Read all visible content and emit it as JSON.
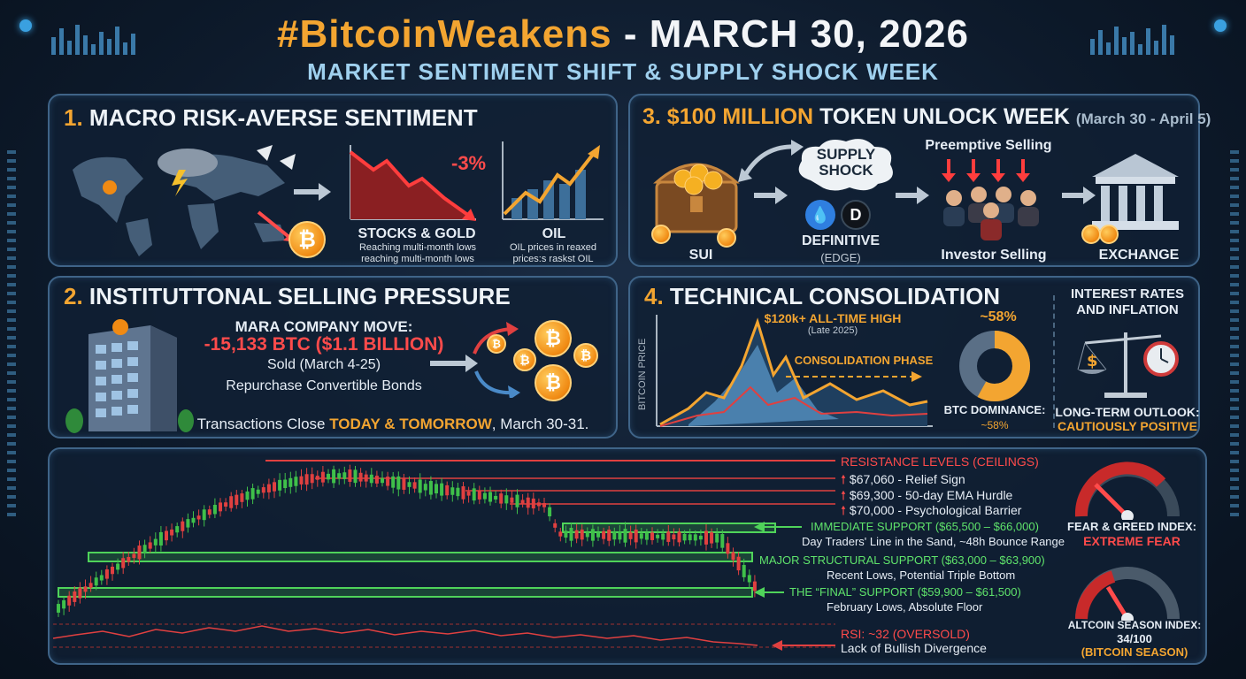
{
  "header": {
    "title_hash": "#BitcoinWeakens",
    "title_rest": " - MARCH 30, 2026",
    "subtitle": "MARKET SENTIMENT SHIFT & SUPPLY SHOCK WEEK"
  },
  "panel1": {
    "num": "1.",
    "title": "MACRO RISK-AVERSE SENTIMENT",
    "stocks_change": "-3%",
    "stocks_label": "STOCKS & GOLD",
    "stocks_caption_1": "Reaching multi-month lows",
    "stocks_caption_2": "reaching multi-month lows",
    "oil_label": "OIL",
    "oil_caption_1": "OIL prices in reaxed",
    "oil_caption_2": "prices:s raskst OIL"
  },
  "panel2": {
    "num": "2.",
    "title": "INSTITUTTONAL SELLING PRESSURE",
    "move_label": "MARA COMPANY MOVE:",
    "amount": "-15,133 BTC ($1.1 BILLION)",
    "sold": "Sold (March 4-25)",
    "repurchase": "Repurchase Convertible Bonds",
    "close_prefix": "Transactions Close ",
    "close_highlight": "TODAY & TOMORROW",
    "close_suffix": ", March 30-31."
  },
  "panel3": {
    "title_highlight": "3. $100 MILLION",
    "title_rest": " TOKEN UNLOCK WEEK",
    "dates": "(March 30 - April 5)",
    "supply_shock_1": "SUPPLY",
    "supply_shock_2": "SHOCK",
    "sui": "SUI",
    "definitive": "DEFINITIVE",
    "edge": "(EDGE)",
    "preemptive": "Preemptive Selling",
    "investor": "Investor Selling",
    "exchange": "EXCHANGE"
  },
  "panel4": {
    "num": "4.",
    "title": "TECHNICAL CONSOLIDATION",
    "ath": "$120k+ ALL-TIME HIGH",
    "ath_date": "(Late 2025)",
    "consolidation": "CONSOLIDATION PHASE",
    "axis": "BITCOIN PRICE",
    "dominance_top": "~58%",
    "dominance_label": "BTC DOMINANCE:",
    "dominance_value": "~58%",
    "dominance_fraction": 0.58,
    "rates_1": "INTEREST RATES",
    "rates_2": "AND INFLATION",
    "outlook_1": "LONG-TERM OUTLOOK:",
    "outlook_2": "CAUTIOUSLY POSITIVE"
  },
  "levels": {
    "resistance_title": "RESISTANCE LEVELS (CEILINGS)",
    "r1": "$67,060 - Relief Sign",
    "r2": "$69,300 - 50-day EMA Hurdle",
    "r3": "$70,000 - Psychological Barrier",
    "s1_title": "IMMEDIATE SUPPORT ($65,500 – $66,000)",
    "s1_desc": "Day Traders' Line in the Sand, ~48h Bounce Range",
    "s2_title": "MAJOR STRUCTURAL SUPPORT ($63,000 – $63,900)",
    "s2_desc": "Recent Lows, Potential Triple Bottom",
    "s3_title": "THE “FINAL” SUPPORT ($59,900 – $61,500)",
    "s3_desc": "February Lows, Absolute Floor",
    "rsi_title": "RSI: ~32 (OVERSOLD)",
    "rsi_desc": "Lack of Bullish Divergence"
  },
  "gauges": {
    "fg_label": "FEAR & GREED INDEX:",
    "fg_value": "EXTREME FEAR",
    "alt_label": "ALTCOIN SEASON INDEX:",
    "alt_value": "34/100",
    "alt_note": "(BITCOIN SEASON)"
  },
  "colors": {
    "gold": "#f3a531",
    "green": "#5fe36b",
    "red": "#ff4b4b"
  }
}
